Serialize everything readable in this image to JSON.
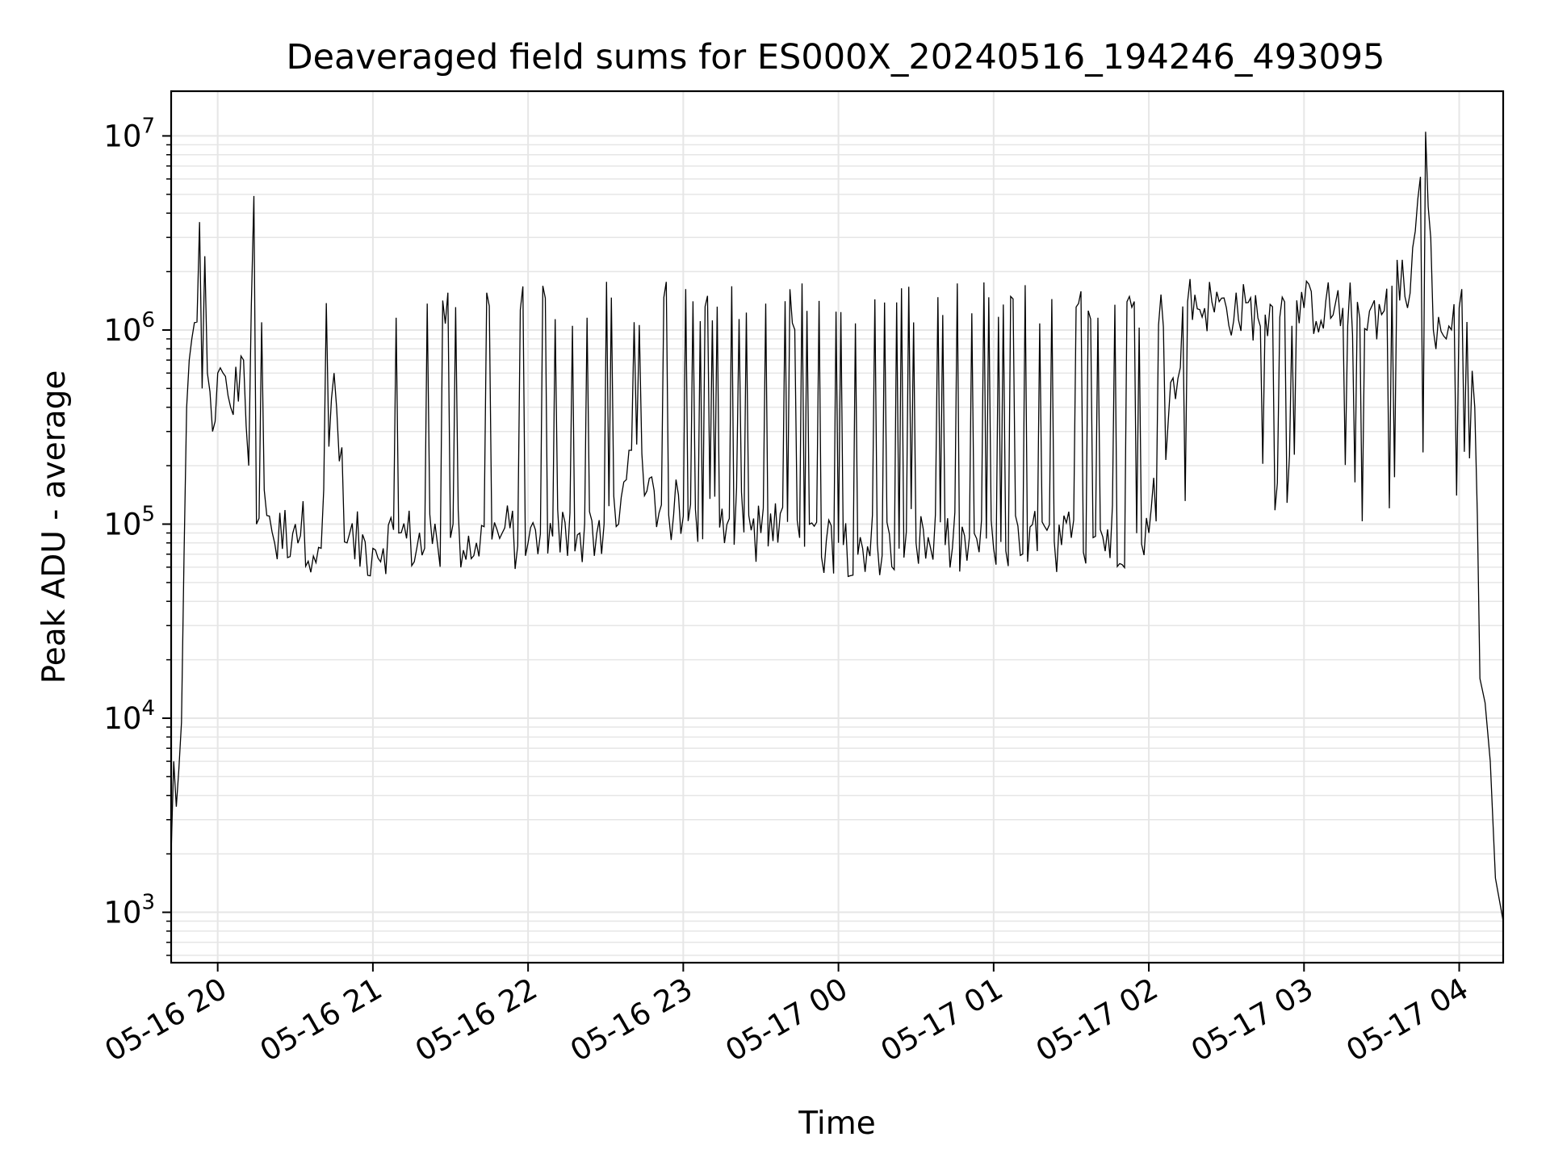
{
  "chart_data": {
    "type": "line",
    "title": "Deaveraged field sums for ES000X_20240516_194246_493095",
    "xlabel": "Time",
    "ylabel": "Peak ADU - average",
    "yscale": "log",
    "grid": true,
    "grid_color": "#e6e6e6",
    "line_color": "#000000",
    "xlim": [
      "2024-05-16 19:42",
      "2024-05-17 04:17"
    ],
    "ylim": [
      550,
      17000000
    ],
    "xticks": [
      {
        "t": "2024-05-16 20:00",
        "label": "05-16 20"
      },
      {
        "t": "2024-05-16 21:00",
        "label": "05-16 21"
      },
      {
        "t": "2024-05-16 22:00",
        "label": "05-16 22"
      },
      {
        "t": "2024-05-16 23:00",
        "label": "05-16 23"
      },
      {
        "t": "2024-05-17 00:00",
        "label": "05-17 00"
      },
      {
        "t": "2024-05-17 01:00",
        "label": "05-17 01"
      },
      {
        "t": "2024-05-17 02:00",
        "label": "05-17 02"
      },
      {
        "t": "2024-05-17 03:00",
        "label": "05-17 03"
      },
      {
        "t": "2024-05-17 04:00",
        "label": "05-17 04"
      }
    ],
    "yticks": [
      {
        "value": 1000,
        "base": "10",
        "exp": "3"
      },
      {
        "value": 10000,
        "base": "10",
        "exp": "4"
      },
      {
        "value": 100000,
        "base": "10",
        "exp": "5"
      },
      {
        "value": 1000000,
        "base": "10",
        "exp": "6"
      },
      {
        "value": 10000000,
        "base": "10",
        "exp": "7"
      }
    ],
    "series": [
      {
        "points": [
          [
            "2024-05-16 19:42",
            2000
          ],
          [
            "2024-05-16 19:43",
            6000
          ],
          [
            "2024-05-16 19:44",
            3500
          ],
          [
            "2024-05-16 19:45",
            5500
          ],
          [
            "2024-05-16 19:46",
            9500
          ],
          [
            "2024-05-16 19:48",
            400000
          ],
          [
            "2024-05-16 19:49",
            700000
          ],
          [
            "2024-05-16 19:50",
            900000
          ],
          [
            "2024-05-16 19:52",
            1100000
          ],
          [
            "2024-05-16 19:53",
            3600000
          ],
          [
            "2024-05-16 19:54",
            500000
          ],
          [
            "2024-05-16 19:55",
            2400000
          ],
          [
            "2024-05-16 19:56",
            600000
          ],
          [
            "2024-05-16 19:58",
            300000
          ],
          [
            "2024-05-16 20:00",
            600000
          ],
          [
            "2024-05-16 20:05",
            400000
          ],
          [
            "2024-05-16 20:10",
            700000
          ],
          [
            "2024-05-16 20:12",
            200000
          ],
          [
            "2024-05-16 20:14",
            4900000
          ],
          [
            "2024-05-16 20:15",
            100000
          ],
          [
            "2024-05-16 20:18",
            150000
          ],
          [
            "2024-05-16 20:22",
            80000
          ],
          [
            "2024-05-16 20:30",
            100000
          ],
          [
            "2024-05-16 20:40",
            75000
          ],
          [
            "2024-05-16 20:45",
            600000
          ],
          [
            "2024-05-16 20:50",
            80000
          ],
          [
            "2024-05-16 21:00",
            75000
          ],
          [
            "2024-05-16 21:10",
            90000
          ],
          [
            "2024-05-16 21:20",
            75000
          ],
          [
            "2024-05-16 21:30",
            85000
          ],
          [
            "2024-05-16 21:40",
            80000
          ],
          [
            "2024-05-16 21:50",
            90000
          ],
          [
            "2024-05-16 22:00",
            80000
          ],
          [
            "2024-05-16 22:20",
            90000
          ],
          [
            "2024-05-16 22:35",
            100000
          ],
          [
            "2024-05-16 22:40",
            240000
          ],
          [
            "2024-05-16 22:45",
            140000
          ],
          [
            "2024-05-16 23:00",
            110000
          ],
          [
            "2024-05-16 23:15",
            120000
          ],
          [
            "2024-05-16 23:30",
            90000
          ],
          [
            "2024-05-16 23:45",
            85000
          ],
          [
            "2024-05-17 00:00",
            80000
          ],
          [
            "2024-05-17 00:30",
            80000
          ],
          [
            "2024-05-17 01:00",
            75000
          ],
          [
            "2024-05-17 01:30",
            85000
          ],
          [
            "2024-05-17 02:00",
            90000
          ],
          [
            "2024-05-17 02:15",
            1400000
          ],
          [
            "2024-05-17 02:30",
            1300000
          ],
          [
            "2024-05-17 02:45",
            1200000
          ],
          [
            "2024-05-17 03:00",
            1300000
          ],
          [
            "2024-05-17 03:15",
            1300000
          ],
          [
            "2024-05-17 03:30",
            1200000
          ],
          [
            "2024-05-17 03:36",
            2300000
          ],
          [
            "2024-05-17 03:40",
            1300000
          ],
          [
            "2024-05-17 03:47",
            10500000
          ],
          [
            "2024-05-17 03:50",
            1000000
          ],
          [
            "2024-05-17 03:55",
            900000
          ],
          [
            "2024-05-17 04:00",
            1300000
          ],
          [
            "2024-05-17 04:03",
            1100000
          ],
          [
            "2024-05-17 04:06",
            400000
          ],
          [
            "2024-05-17 04:08",
            16000
          ],
          [
            "2024-05-17 04:10",
            12000
          ],
          [
            "2024-05-17 04:12",
            6000
          ],
          [
            "2024-05-17 04:14",
            1500
          ],
          [
            "2024-05-17 04:17",
            900
          ]
        ]
      }
    ]
  }
}
